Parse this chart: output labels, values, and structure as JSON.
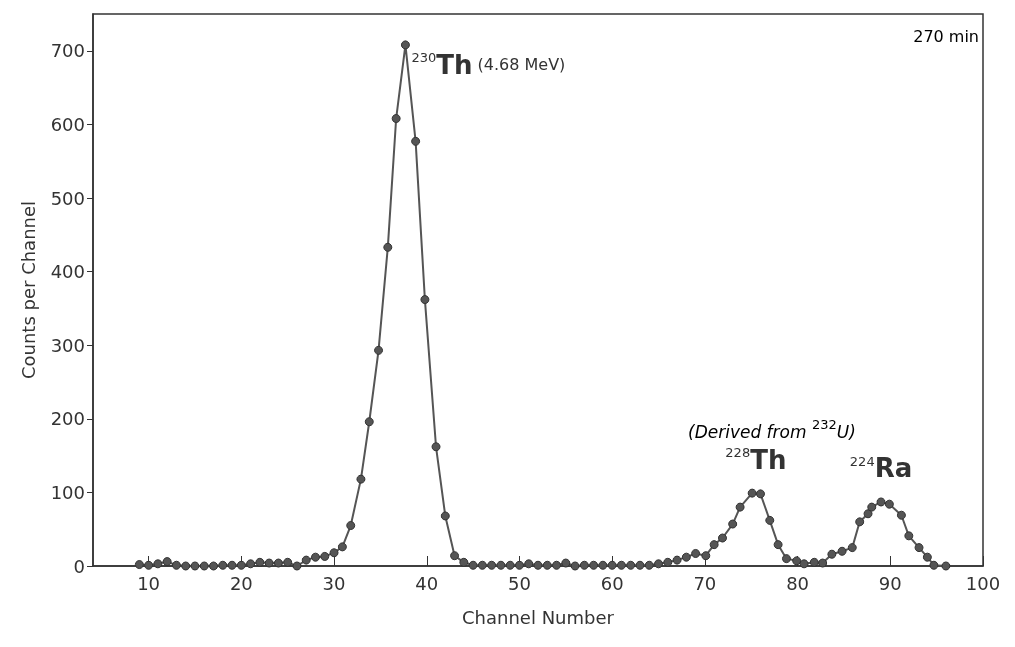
{
  "chart_data": {
    "type": "line",
    "xlabel": "Channel Number",
    "ylabel": "Counts per Channel",
    "xlim": [
      4,
      100
    ],
    "xticks": [
      10,
      20,
      30,
      40,
      50,
      60,
      70,
      80,
      90,
      100
    ],
    "ylim": [
      0,
      750
    ],
    "yticks": [
      0,
      100,
      200,
      300,
      400,
      500,
      600,
      700
    ],
    "grid": false,
    "marker": "circle",
    "line_style": "solid",
    "series": [
      {
        "color": "#555555",
        "x": [
          9,
          10,
          11,
          12,
          13,
          14,
          15,
          16,
          17,
          18,
          19,
          20,
          21,
          22,
          23,
          24,
          25,
          26,
          27,
          28,
          29,
          30,
          30.9,
          31.8,
          32.9,
          33.8,
          34.8,
          35.8,
          36.7,
          37.7,
          38.8,
          39.8,
          41,
          42,
          43,
          44,
          45,
          46,
          47,
          48,
          49,
          50,
          51,
          52,
          53,
          54,
          55,
          56,
          57,
          58,
          59,
          60,
          61,
          62,
          63,
          64,
          65,
          66,
          67,
          68,
          69,
          70.1,
          71,
          71.9,
          73,
          73.8,
          75.1,
          76,
          77,
          77.9,
          78.8,
          79.9,
          80.7,
          81.8,
          82.7,
          83.7,
          84.8,
          85.9,
          86.7,
          87.6,
          88,
          89,
          89.9,
          91.2,
          92,
          93.1,
          94,
          94.7,
          96
        ],
        "values": [
          2,
          1,
          3,
          6,
          1,
          0,
          0,
          0,
          0,
          1,
          1,
          1,
          3,
          5,
          4,
          4,
          5,
          0,
          8,
          12,
          13,
          18,
          26,
          55,
          118,
          196,
          293,
          433,
          608,
          708,
          577,
          362,
          162,
          68,
          14,
          5,
          1,
          1,
          1,
          1,
          1,
          1,
          3,
          1,
          1,
          1,
          4,
          0,
          1,
          1,
          1,
          1,
          1,
          1,
          1,
          1,
          3,
          5,
          8,
          12,
          17,
          14,
          29,
          38,
          57,
          80,
          99,
          98,
          62,
          29,
          10,
          7,
          3,
          5,
          4,
          16,
          20,
          25,
          60,
          71,
          80,
          87,
          84,
          69,
          41,
          25,
          12,
          1,
          0
        ]
      }
    ],
    "annotations": [
      {
        "text": "$^{230}$Th (4.68 MeV)",
        "x": 37.7,
        "y": 708
      },
      {
        "text": "$^{228}$Th",
        "x": 75.5,
        "y": 99
      },
      {
        "text": "$^{224}$Ra",
        "x": 89,
        "y": 87
      },
      "(Derived from $^{232}$U)",
      "270 min"
    ]
  }
}
